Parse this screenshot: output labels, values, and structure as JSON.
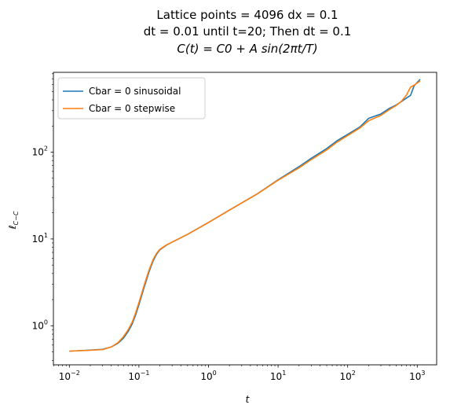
{
  "chart_data": {
    "type": "line",
    "title_lines": [
      "Lattice points = 4096 dx = 0.1",
      "dt = 0.01 until t=20; Then dt = 0.1",
      "C(t) = C0 + A sin(2πt/T)"
    ],
    "xlabel": "t",
    "ylabel_main": "ℓ",
    "ylabel_sub": "C−C",
    "x_scale": "log",
    "y_scale": "log",
    "xlim": [
      0.0059,
      1900
    ],
    "ylim": [
      0.355,
      830
    ],
    "x_ticks": [
      {
        "value": 0.01,
        "base": "10",
        "exp": "−2"
      },
      {
        "value": 0.1,
        "base": "10",
        "exp": "−1"
      },
      {
        "value": 1,
        "base": "10",
        "exp": "0"
      },
      {
        "value": 10,
        "base": "10",
        "exp": "1"
      },
      {
        "value": 100,
        "base": "10",
        "exp": "2"
      },
      {
        "value": 1000,
        "base": "10",
        "exp": "3"
      }
    ],
    "y_ticks": [
      {
        "value": 1,
        "base": "10",
        "exp": "0"
      },
      {
        "value": 10,
        "base": "10",
        "exp": "1"
      },
      {
        "value": 100,
        "base": "10",
        "exp": "2"
      }
    ],
    "grid": false,
    "legend_position": "upper-left",
    "series": [
      {
        "name": "Cbar = 0 sinusoidal",
        "color": "#1f77b4",
        "x": [
          0.01,
          0.02,
          0.03,
          0.04,
          0.05,
          0.06,
          0.07,
          0.08,
          0.09,
          0.1,
          0.12,
          0.14,
          0.16,
          0.18,
          0.2,
          0.25,
          0.3,
          0.5,
          1,
          2,
          5,
          10,
          20,
          30,
          50,
          70,
          100,
          150,
          200,
          300,
          400,
          500,
          600,
          700,
          800,
          900,
          1100
        ],
        "y": [
          0.51,
          0.525,
          0.535,
          0.57,
          0.63,
          0.72,
          0.86,
          1.05,
          1.35,
          1.75,
          2.85,
          4.2,
          5.6,
          6.7,
          7.5,
          8.5,
          9.2,
          11.3,
          15.5,
          21.5,
          33,
          48,
          68,
          85,
          110,
          135,
          160,
          195,
          245,
          275,
          320,
          350,
          385,
          420,
          450,
          580,
          690
        ]
      },
      {
        "name": "Cbar = 0 stepwise",
        "color": "#ff7f0e",
        "x": [
          0.01,
          0.02,
          0.03,
          0.04,
          0.05,
          0.06,
          0.07,
          0.08,
          0.09,
          0.1,
          0.12,
          0.14,
          0.16,
          0.18,
          0.2,
          0.25,
          0.3,
          0.5,
          1,
          2,
          5,
          10,
          20,
          30,
          50,
          70,
          100,
          150,
          200,
          300,
          400,
          500,
          600,
          700,
          800,
          900,
          1100
        ],
        "y": [
          0.51,
          0.522,
          0.532,
          0.57,
          0.64,
          0.75,
          0.9,
          1.1,
          1.42,
          1.85,
          3.0,
          4.4,
          5.8,
          6.85,
          7.6,
          8.55,
          9.2,
          11.3,
          15.5,
          21.5,
          33,
          47.5,
          66,
          82,
          106,
          130,
          155,
          190,
          230,
          265,
          310,
          345,
          390,
          455,
          560,
          590,
          660
        ]
      }
    ]
  }
}
